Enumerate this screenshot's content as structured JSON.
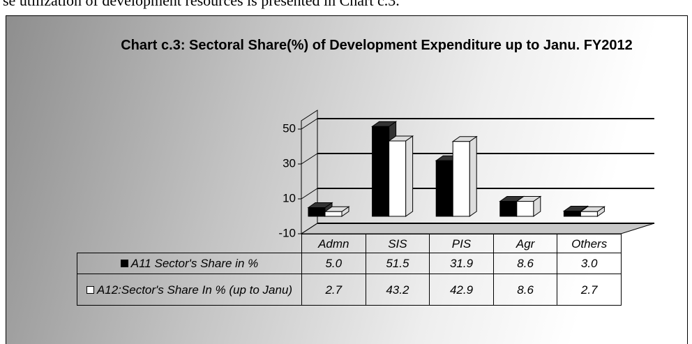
{
  "page_text": "se utilization of development resources is presented in Chart c.3.",
  "chart_data": {
    "type": "bar",
    "title": "Chart c.3: Sectoral Share(%) of Development Expenditure up to Janu. FY2012",
    "categories": [
      "Admn",
      "SIS",
      "PIS",
      "Agr",
      "Others"
    ],
    "series": [
      {
        "name": "A11 Sector's Share in %",
        "color": "#000000",
        "values": [
          5.0,
          51.5,
          31.9,
          8.6,
          3.0
        ],
        "value_labels": [
          "5.0",
          "51.5",
          "31.9",
          "8.6",
          "3.0"
        ]
      },
      {
        "name": "A12:Sector's Share In % (up to Janu)",
        "color": "#ffffff",
        "values": [
          2.7,
          43.2,
          42.9,
          8.6,
          2.7
        ],
        "value_labels": [
          "2.7",
          "43.2",
          "42.9",
          "8.6",
          "2.7"
        ]
      }
    ],
    "ylim": [
      -10,
      50
    ],
    "yticks": [
      -10,
      10,
      30,
      50
    ],
    "grid": true,
    "data_table": true
  }
}
